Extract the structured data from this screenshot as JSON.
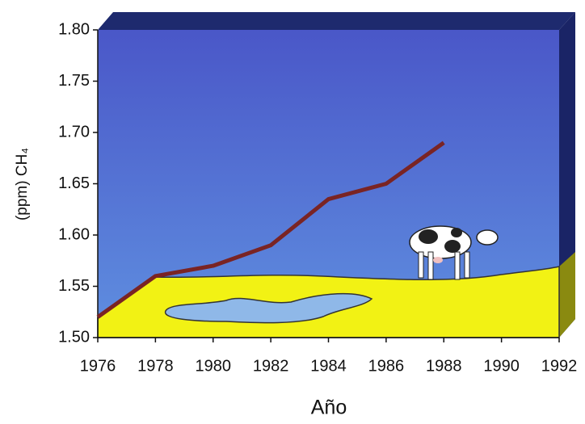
{
  "chart_data": {
    "type": "line",
    "xlabel": "Año",
    "ylabel": "(ppm) CH₄",
    "x": [
      1976,
      1978,
      1980,
      1982,
      1984,
      1986,
      1988
    ],
    "series": [
      {
        "color": "#7a2424",
        "values": [
          1.52,
          1.56,
          1.57,
          1.59,
          1.635,
          1.65,
          1.69
        ]
      }
    ],
    "xlim": [
      1976,
      1992
    ],
    "xticks": [
      1976,
      1978,
      1980,
      1982,
      1984,
      1986,
      1988,
      1990,
      1992
    ],
    "ylim": [
      1.5,
      1.8
    ],
    "yticks": [
      {
        "value": 1.5,
        "label": "1.50"
      },
      1.55,
      {
        "value": 1.6,
        "label": "1.60"
      },
      1.65,
      {
        "value": 1.7,
        "label": "1.70"
      },
      1.75,
      {
        "value": 1.8,
        "label": "1.80"
      }
    ]
  }
}
